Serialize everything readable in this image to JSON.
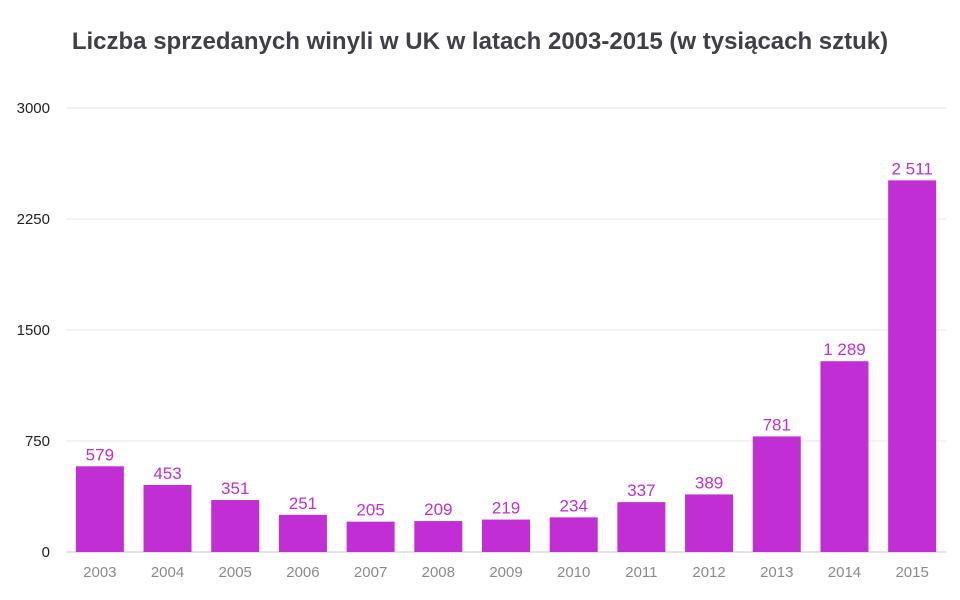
{
  "chart_data": {
    "type": "bar",
    "title": "Liczba sprzedanych winyli w UK w latach 2003-2015 (w tysiącach sztuk)",
    "categories": [
      "2003",
      "2004",
      "2005",
      "2006",
      "2007",
      "2008",
      "2009",
      "2010",
      "2011",
      "2012",
      "2013",
      "2014",
      "2015"
    ],
    "values": [
      579,
      453,
      351,
      251,
      205,
      209,
      219,
      234,
      337,
      389,
      781,
      1289,
      2511
    ],
    "value_labels": [
      "579",
      "453",
      "351",
      "251",
      "205",
      "209",
      "219",
      "234",
      "337",
      "389",
      "781",
      "1 289",
      "2 511"
    ],
    "y_ticks": [
      0,
      750,
      1500,
      2250,
      3000
    ],
    "y_tick_labels": [
      "0",
      "750",
      "1500",
      "2250",
      "3000"
    ],
    "ylim": [
      0,
      3000
    ],
    "xlabel": "",
    "ylabel": "",
    "grid": true,
    "legend": "none",
    "colors": {
      "bar": "#c12ed4",
      "bar_label": "#c12ed4",
      "grid": "#e6e6e6",
      "axis": "#c8c8c8",
      "y_tick_text": "#222222",
      "x_tick_text": "#8a8a8a",
      "title": "#3f3f45"
    }
  }
}
